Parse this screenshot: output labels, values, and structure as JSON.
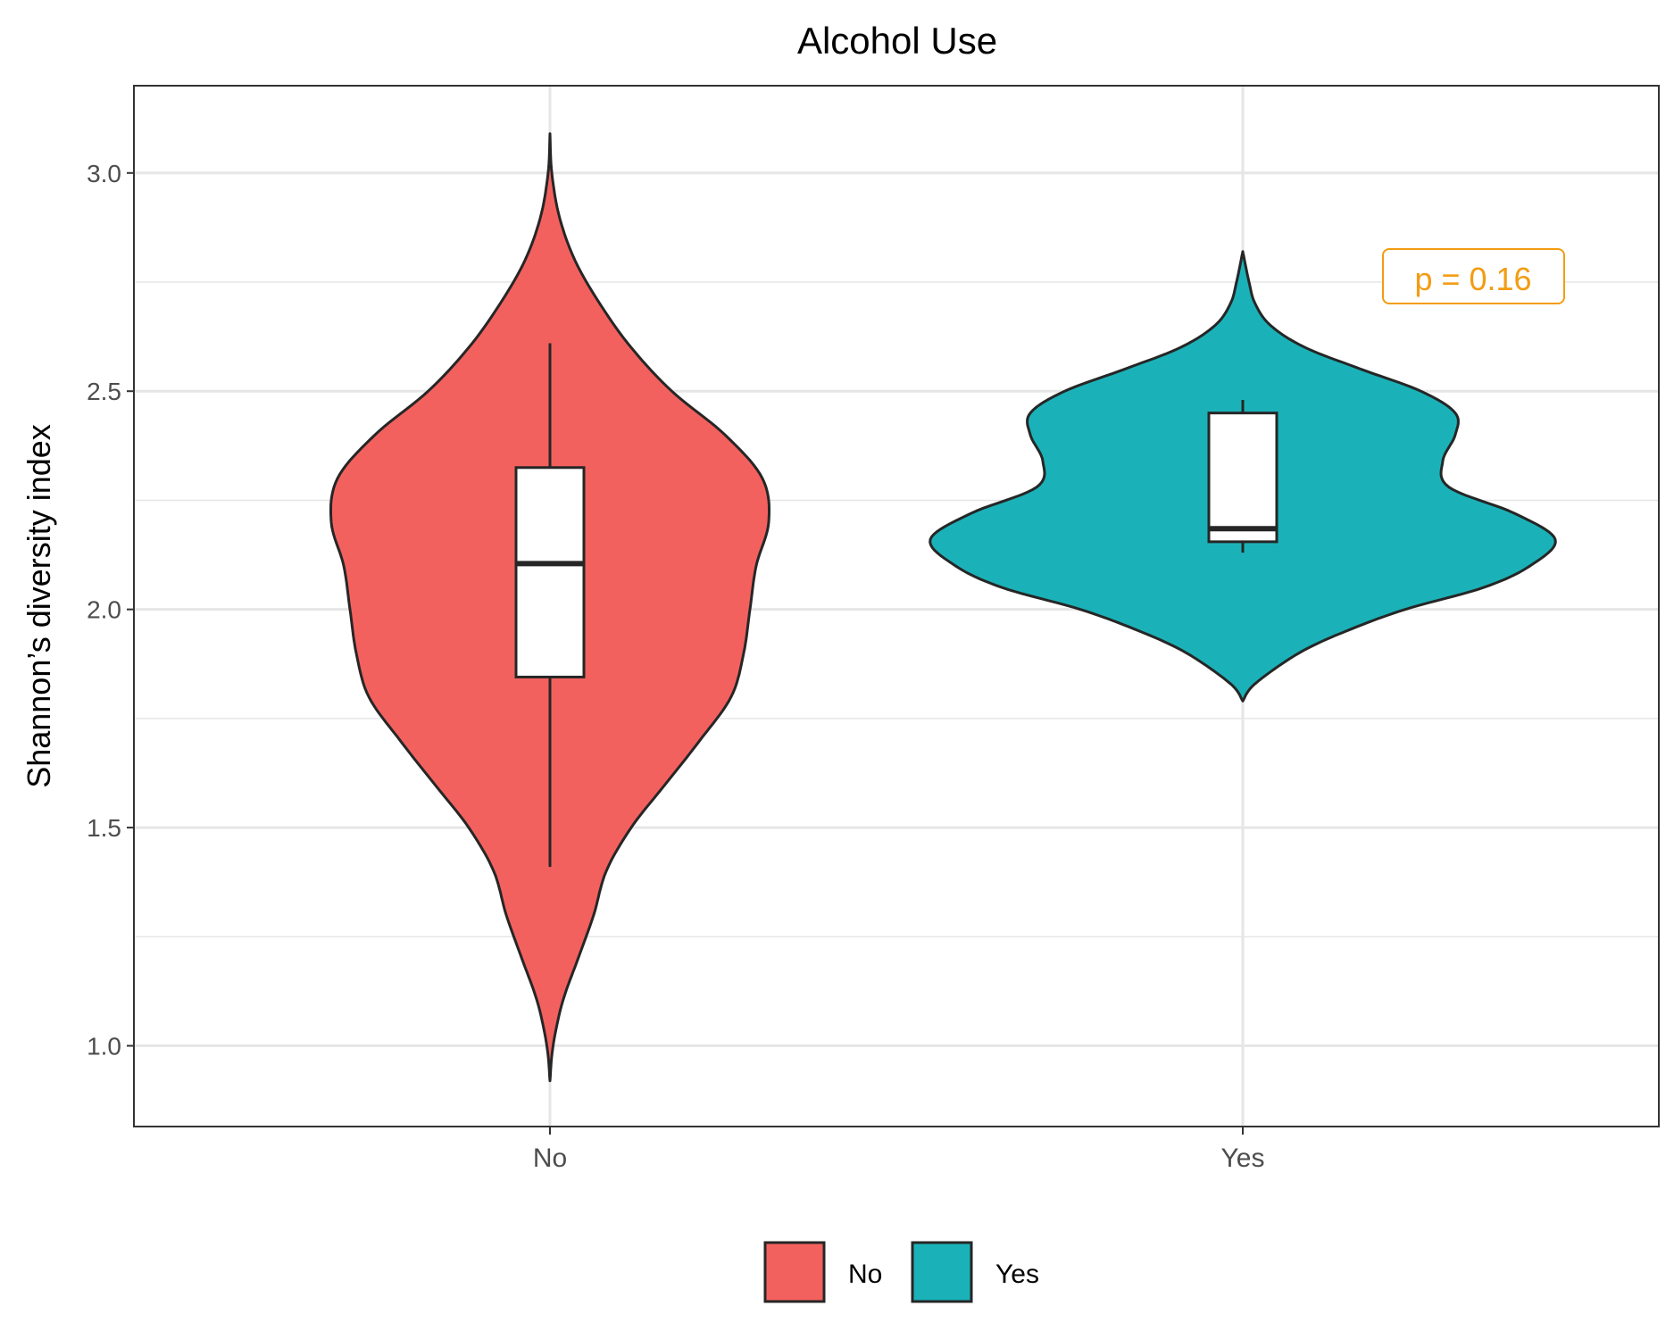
{
  "chart_data": {
    "type": "violin",
    "title": "Alcohol Use",
    "xlabel": "",
    "ylabel": "Shannon’s diversity index",
    "ylim": [
      0.815,
      3.2
    ],
    "yticks": [
      1.0,
      1.5,
      2.0,
      2.5,
      3.0
    ],
    "ytick_labels": [
      "1.0",
      "1.5",
      "2.0",
      "2.5",
      "3.0"
    ],
    "categories": [
      "No",
      "Yes"
    ],
    "grid": true,
    "legend_position": "bottom",
    "annotation": {
      "text": "p = 0.16",
      "color": "#F39C12"
    },
    "series": [
      {
        "name": "No",
        "color": "#F3615F",
        "violin": {
          "min": 0.92,
          "max": 3.09,
          "density": [
            [
              0.92,
              0.0
            ],
            [
              1.0,
              0.01
            ],
            [
              1.1,
              0.04
            ],
            [
              1.2,
              0.09
            ],
            [
              1.3,
              0.14
            ],
            [
              1.4,
              0.18
            ],
            [
              1.5,
              0.26
            ],
            [
              1.6,
              0.37
            ],
            [
              1.7,
              0.48
            ],
            [
              1.8,
              0.58
            ],
            [
              1.9,
              0.62
            ],
            [
              2.0,
              0.64
            ],
            [
              2.1,
              0.66
            ],
            [
              2.2,
              0.7
            ],
            [
              2.3,
              0.68
            ],
            [
              2.4,
              0.56
            ],
            [
              2.5,
              0.39
            ],
            [
              2.6,
              0.26
            ],
            [
              2.7,
              0.16
            ],
            [
              2.8,
              0.08
            ],
            [
              2.9,
              0.03
            ],
            [
              3.0,
              0.006
            ],
            [
              3.09,
              0.0
            ]
          ]
        },
        "box": {
          "whisker_low": 1.41,
          "q1": 1.845,
          "median": 2.105,
          "q3": 2.325,
          "whisker_high": 2.61
        }
      },
      {
        "name": "Yes",
        "color": "#1AB2B8",
        "violin": {
          "min": 1.79,
          "max": 2.82,
          "density": [
            [
              1.79,
              0.0
            ],
            [
              1.83,
              0.04
            ],
            [
              1.9,
              0.18
            ],
            [
              1.95,
              0.33
            ],
            [
              2.0,
              0.52
            ],
            [
              2.05,
              0.77
            ],
            [
              2.1,
              0.92
            ],
            [
              2.16,
              1.0
            ],
            [
              2.22,
              0.87
            ],
            [
              2.28,
              0.66
            ],
            [
              2.34,
              0.64
            ],
            [
              2.4,
              0.68
            ],
            [
              2.45,
              0.68
            ],
            [
              2.5,
              0.57
            ],
            [
              2.55,
              0.38
            ],
            [
              2.6,
              0.2
            ],
            [
              2.65,
              0.09
            ],
            [
              2.7,
              0.04
            ],
            [
              2.75,
              0.02
            ],
            [
              2.82,
              0.0
            ]
          ]
        },
        "box": {
          "whisker_low": 2.13,
          "q1": 2.155,
          "median": 2.185,
          "q3": 2.45,
          "whisker_high": 2.48
        }
      }
    ]
  },
  "legend": {
    "items": [
      "No",
      "Yes"
    ]
  },
  "colors": {
    "panel_border": "#333333",
    "grid": "#E6E6E6",
    "outline": "#262626"
  }
}
